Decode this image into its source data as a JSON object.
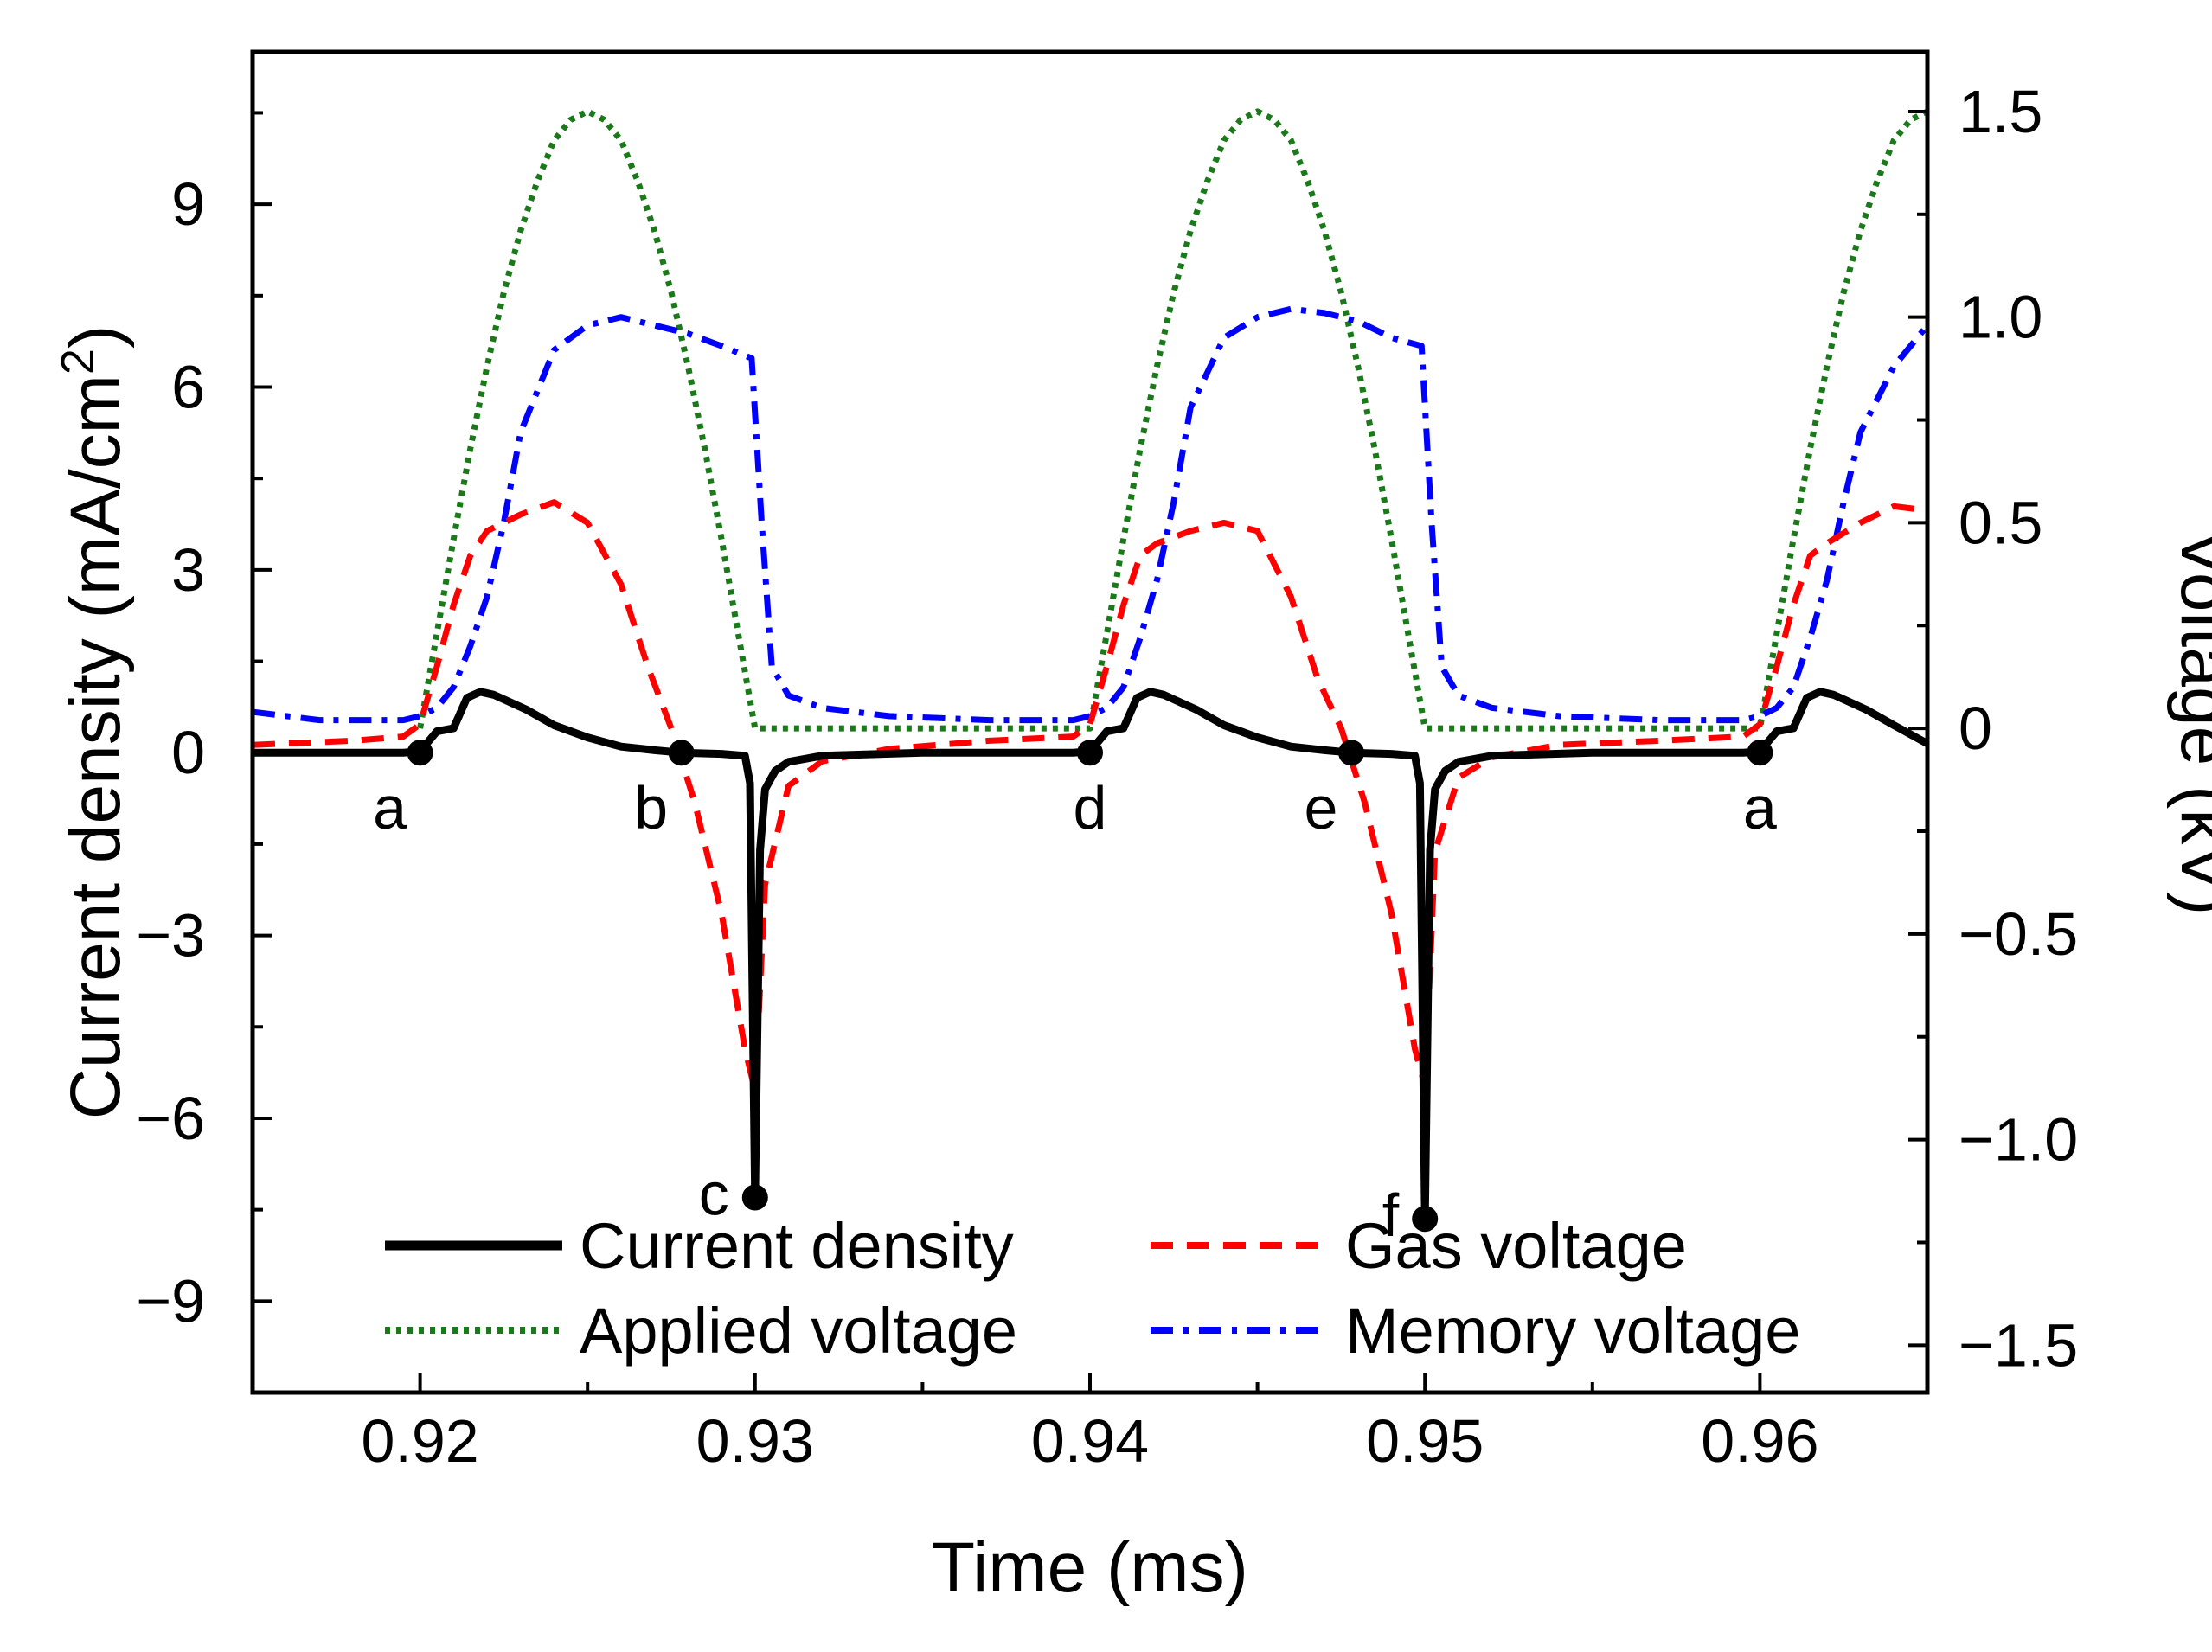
{
  "chart_data": {
    "type": "line",
    "xlabel": "Time (ms)",
    "ylabel_left": "Current density (mA/cm",
    "ylabel_left_sup": "2",
    "ylabel_left_close": ")",
    "ylabel_right": "Voltage (kV)",
    "xlim": [
      0.915,
      0.965
    ],
    "ylim_left": [
      -10.5,
      11.5
    ],
    "ylim_right": [
      -1.615,
      1.645
    ],
    "x_ticks": [
      {
        "value": 0.92,
        "label": "0.92"
      },
      {
        "value": 0.93,
        "label": "0.93"
      },
      {
        "value": 0.94,
        "label": "0.94"
      },
      {
        "value": 0.95,
        "label": "0.95"
      },
      {
        "value": 0.96,
        "label": "0.96"
      }
    ],
    "y_left_ticks": [
      {
        "value": 9,
        "label": "9"
      },
      {
        "value": 6,
        "label": "6"
      },
      {
        "value": 3,
        "label": "3"
      },
      {
        "value": 0,
        "label": "0"
      },
      {
        "value": -3,
        "label": "−3"
      },
      {
        "value": -6,
        "label": "−6"
      },
      {
        "value": -9,
        "label": "−9"
      }
    ],
    "y_right_ticks": [
      {
        "value": 1.5,
        "label": "1.5"
      },
      {
        "value": 1.0,
        "label": "1.0"
      },
      {
        "value": 0.5,
        "label": "0.5"
      },
      {
        "value": 0.0,
        "label": "0"
      },
      {
        "value": -0.5,
        "label": "−0.5"
      },
      {
        "value": -1.0,
        "label": "−1.0"
      },
      {
        "value": -1.5,
        "label": "−1.5"
      }
    ],
    "series": [
      {
        "name": "Current density",
        "axis": "left",
        "color": "#000000",
        "style": "solid",
        "x": [
          0.915,
          0.9195,
          0.92,
          0.9205,
          0.921,
          0.9214,
          0.9218,
          0.9222,
          0.9226,
          0.9232,
          0.924,
          0.925,
          0.926,
          0.927,
          0.9278,
          0.929,
          0.9297,
          0.92985,
          0.93,
          0.93015,
          0.9303,
          0.9306,
          0.931,
          0.932,
          0.935,
          0.9395,
          0.94,
          0.9405,
          0.941,
          0.9414,
          0.9418,
          0.9422,
          0.9426,
          0.9432,
          0.944,
          0.945,
          0.946,
          0.947,
          0.9478,
          0.949,
          0.9497,
          0.94985,
          0.95,
          0.95015,
          0.9503,
          0.9506,
          0.951,
          0.952,
          0.955,
          0.9595,
          0.96,
          0.9605,
          0.961,
          0.9614,
          0.9618,
          0.9622,
          0.9626,
          0.9632,
          0.964,
          0.965
        ],
        "y": [
          0,
          0,
          0.02,
          0.35,
          0.4,
          0.9,
          1.0,
          0.95,
          0.85,
          0.7,
          0.45,
          0.25,
          0.1,
          0.04,
          0,
          -0.02,
          -0.05,
          -0.5,
          -7.3,
          -1.6,
          -0.6,
          -0.3,
          -0.15,
          -0.05,
          0,
          0,
          0.02,
          0.35,
          0.4,
          0.9,
          1.0,
          0.95,
          0.85,
          0.7,
          0.45,
          0.25,
          0.1,
          0.04,
          0,
          -0.02,
          -0.05,
          -0.5,
          -7.6,
          -1.6,
          -0.6,
          -0.3,
          -0.15,
          -0.05,
          0,
          0,
          0.02,
          0.35,
          0.4,
          0.9,
          1.0,
          0.95,
          0.85,
          0.7,
          0.45,
          0.15
        ]
      },
      {
        "name": "Gas voltage",
        "axis": "right",
        "color": "#ff0000",
        "style": "dashed",
        "x": [
          0.915,
          0.918,
          0.9195,
          0.92,
          0.9205,
          0.921,
          0.9215,
          0.922,
          0.923,
          0.924,
          0.925,
          0.926,
          0.9268,
          0.9275,
          0.9282,
          0.929,
          0.9297,
          0.93,
          0.9303,
          0.931,
          0.932,
          0.934,
          0.937,
          0.9395,
          0.94,
          0.9405,
          0.941,
          0.9415,
          0.942,
          0.943,
          0.944,
          0.945,
          0.946,
          0.9468,
          0.9475,
          0.9482,
          0.949,
          0.9497,
          0.95,
          0.9503,
          0.951,
          0.952,
          0.954,
          0.957,
          0.9595,
          0.96,
          0.9605,
          0.961,
          0.9615,
          0.962,
          0.963,
          0.964,
          0.965
        ],
        "y": [
          -0.04,
          -0.03,
          -0.02,
          0.01,
          0.15,
          0.3,
          0.42,
          0.48,
          0.52,
          0.55,
          0.5,
          0.35,
          0.15,
          0.0,
          -0.18,
          -0.45,
          -0.78,
          -0.88,
          -0.38,
          -0.14,
          -0.08,
          -0.05,
          -0.03,
          -0.02,
          0.01,
          0.15,
          0.3,
          0.42,
          0.45,
          0.48,
          0.5,
          0.48,
          0.32,
          0.12,
          0.0,
          -0.18,
          -0.45,
          -0.78,
          -0.87,
          -0.3,
          -0.12,
          -0.07,
          -0.04,
          -0.03,
          -0.02,
          0.01,
          0.15,
          0.3,
          0.42,
          0.45,
          0.5,
          0.54,
          0.53
        ]
      },
      {
        "name": "Applied voltage",
        "axis": "right",
        "color": "#1a7a1a",
        "style": "dotted",
        "x": [
          0.92,
          0.9205,
          0.921,
          0.9215,
          0.922,
          0.9225,
          0.923,
          0.9235,
          0.924,
          0.9245,
          0.925,
          0.9255,
          0.926,
          0.9265,
          0.927,
          0.9275,
          0.928,
          0.9285,
          0.929,
          0.9295,
          0.93,
          0.94,
          0.9405,
          0.941,
          0.9415,
          0.942,
          0.9425,
          0.943,
          0.9435,
          0.944,
          0.9445,
          0.945,
          0.9455,
          0.946,
          0.9465,
          0.947,
          0.9475,
          0.948,
          0.9485,
          0.949,
          0.9495,
          0.95,
          0.96,
          0.9605,
          0.961,
          0.9615,
          0.962,
          0.9625,
          0.963,
          0.9635,
          0.964,
          0.9645,
          0.965
        ],
        "y": [
          0,
          0.23,
          0.46,
          0.68,
          0.88,
          1.06,
          1.21,
          1.33,
          1.43,
          1.48,
          1.5,
          1.48,
          1.43,
          1.33,
          1.21,
          1.06,
          0.88,
          0.68,
          0.46,
          0.23,
          0,
          0,
          0.23,
          0.46,
          0.68,
          0.88,
          1.06,
          1.21,
          1.33,
          1.43,
          1.48,
          1.5,
          1.48,
          1.43,
          1.33,
          1.21,
          1.06,
          0.88,
          0.68,
          0.46,
          0.23,
          0,
          0,
          0.23,
          0.46,
          0.68,
          0.88,
          1.06,
          1.21,
          1.33,
          1.43,
          1.48,
          1.5
        ]
      },
      {
        "name": "Memory voltage",
        "axis": "right",
        "color": "#0000ff",
        "style": "dashdot",
        "x": [
          0.915,
          0.917,
          0.9195,
          0.92,
          0.9205,
          0.921,
          0.9215,
          0.922,
          0.9225,
          0.923,
          0.924,
          0.925,
          0.926,
          0.927,
          0.928,
          0.929,
          0.9299,
          0.9302,
          0.9305,
          0.931,
          0.932,
          0.934,
          0.937,
          0.9395,
          0.94,
          0.9405,
          0.941,
          0.9415,
          0.942,
          0.9425,
          0.943,
          0.944,
          0.945,
          0.946,
          0.947,
          0.948,
          0.949,
          0.9499,
          0.9502,
          0.9505,
          0.951,
          0.952,
          0.954,
          0.957,
          0.9595,
          0.96,
          0.9605,
          0.961,
          0.9615,
          0.962,
          0.9625,
          0.963,
          0.964,
          0.965
        ],
        "y": [
          0.04,
          0.02,
          0.02,
          0.03,
          0.05,
          0.1,
          0.2,
          0.32,
          0.5,
          0.72,
          0.92,
          0.98,
          1.0,
          0.98,
          0.96,
          0.93,
          0.9,
          0.5,
          0.15,
          0.08,
          0.05,
          0.03,
          0.02,
          0.02,
          0.03,
          0.05,
          0.1,
          0.22,
          0.36,
          0.55,
          0.78,
          0.95,
          1.0,
          1.02,
          1.01,
          0.99,
          0.95,
          0.93,
          0.5,
          0.15,
          0.08,
          0.05,
          0.03,
          0.02,
          0.02,
          0.03,
          0.05,
          0.1,
          0.22,
          0.36,
          0.55,
          0.72,
          0.88,
          0.98
        ]
      }
    ],
    "points": [
      {
        "label": "a",
        "x": 0.92,
        "y": 0.0,
        "label_pos": "below-left"
      },
      {
        "label": "b",
        "x": 0.9278,
        "y": 0.0,
        "label_pos": "below-left"
      },
      {
        "label": "c",
        "x": 0.93,
        "y": -7.3,
        "label_pos": "left"
      },
      {
        "label": "d",
        "x": 0.94,
        "y": 0.0,
        "label_pos": "below"
      },
      {
        "label": "e",
        "x": 0.9478,
        "y": 0.0,
        "label_pos": "below-left"
      },
      {
        "label": "f",
        "x": 0.95,
        "y": -7.65,
        "label_pos": "left"
      },
      {
        "label": "a",
        "x": 0.96,
        "y": 0.0,
        "label_pos": "below"
      }
    ],
    "legend": {
      "placement": "bottom",
      "entries": [
        {
          "name": "Current density",
          "color": "#000000",
          "style": "solid"
        },
        {
          "name": "Gas voltage",
          "color": "#ff0000",
          "style": "dashed"
        },
        {
          "name": "Applied voltage",
          "color": "#1a7a1a",
          "style": "dotted"
        },
        {
          "name": "Memory voltage",
          "color": "#0000ff",
          "style": "dashdot"
        }
      ]
    }
  }
}
